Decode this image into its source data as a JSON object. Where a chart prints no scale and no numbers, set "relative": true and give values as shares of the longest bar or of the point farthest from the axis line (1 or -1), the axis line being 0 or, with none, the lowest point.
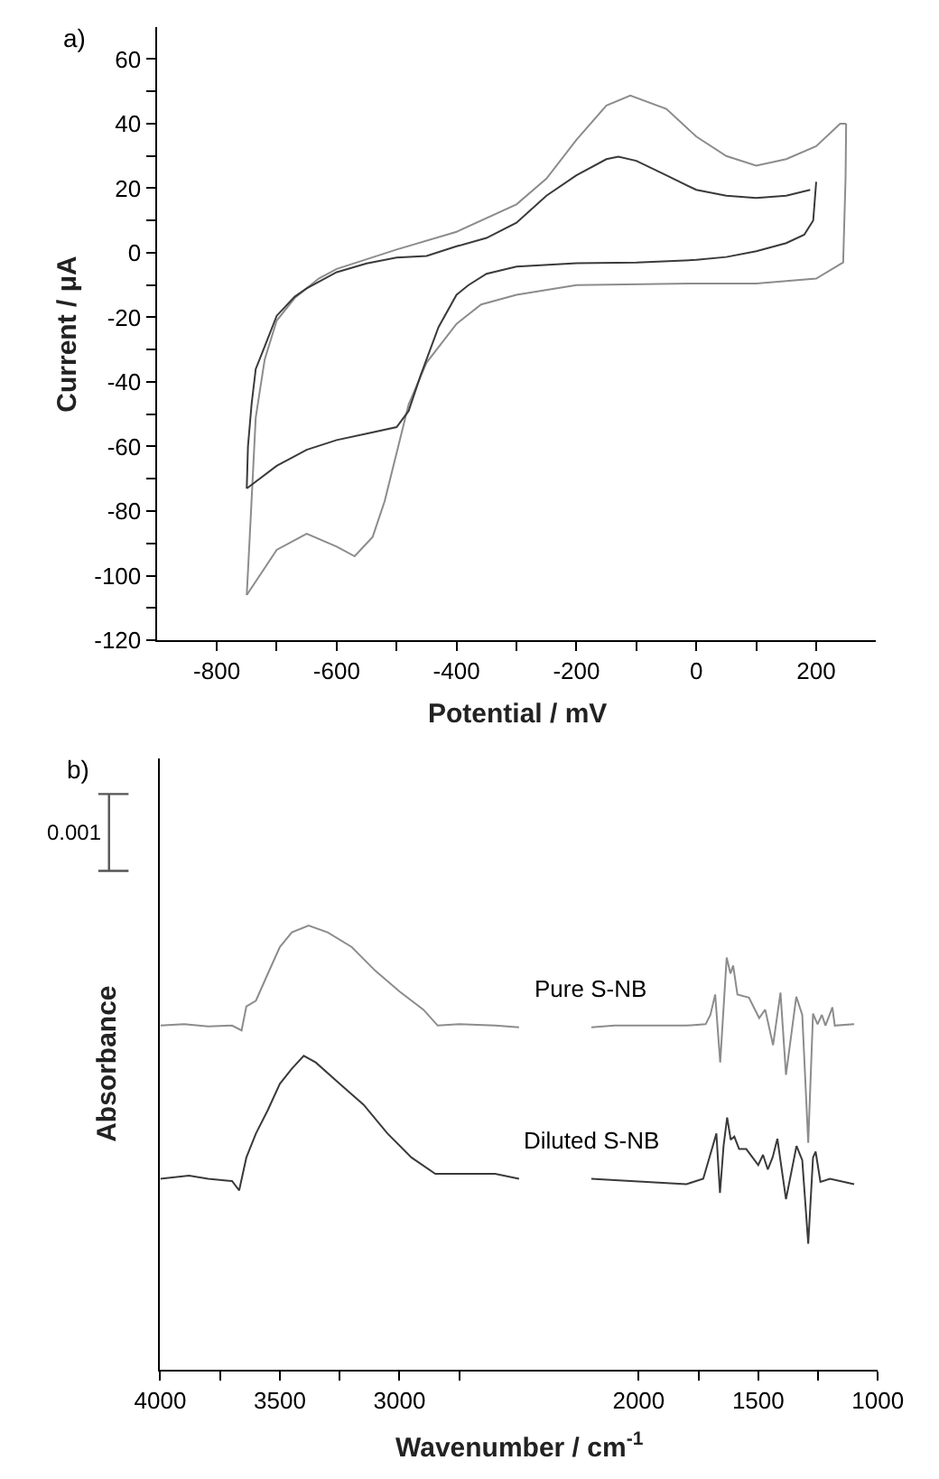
{
  "chart_data": [
    {
      "type": "line",
      "title": "a)",
      "xlabel": "Potential / mV",
      "ylabel": "Current / μA",
      "xlim": [
        -900,
        300
      ],
      "ylim": [
        -120,
        70
      ],
      "xticks": [
        -800,
        {
          "value": -700,
          "label": null
        },
        -600,
        {
          "value": -500,
          "label": null
        },
        -400,
        {
          "value": -300,
          "label": null
        },
        -200,
        {
          "value": -100,
          "label": null
        },
        0,
        {
          "value": 100,
          "label": null
        },
        200
      ],
      "yticks": [
        -120,
        {
          "value": -110,
          "label": null
        },
        -100,
        {
          "value": -90,
          "label": null
        },
        -80,
        {
          "value": -70,
          "label": null
        },
        -60,
        {
          "value": -50,
          "label": null
        },
        -40,
        {
          "value": -30,
          "label": null
        },
        -20,
        {
          "value": -10,
          "label": null
        },
        0,
        {
          "value": 10,
          "label": null
        },
        20,
        {
          "value": 30,
          "label": null
        },
        40,
        {
          "value": 50,
          "label": null
        },
        60
      ],
      "series": [
        {
          "color": "#8c8c8c",
          "x": [
            250,
            249,
            245,
            200,
            100,
            0,
            -200,
            -300,
            -359,
            -400,
            -450,
            -480,
            -500,
            -520,
            -540,
            -570,
            -600,
            -650,
            -700,
            -750
          ],
          "values": [
            40,
            23,
            -3,
            -8,
            -9.5,
            -9.5,
            -10,
            -13,
            -16,
            -22,
            -34,
            -47,
            -62,
            -77,
            -88,
            -94,
            -91,
            -87,
            -92,
            -106
          ]
        },
        {
          "color": "#8c8c8c",
          "x": [
            -750,
            -745,
            -735,
            -720,
            -700,
            -670,
            -630,
            -600,
            -550,
            -500,
            -400,
            -300,
            -250,
            -200,
            -150,
            -110,
            -50,
            0,
            50,
            100,
            150,
            200,
            240,
            250
          ],
          "values": [
            -106,
            -88,
            -51,
            -33,
            -21,
            -14,
            -8,
            -5,
            -2,
            1,
            6.5,
            15,
            23,
            35,
            45.6,
            48.7,
            44.6,
            36,
            30,
            27,
            29,
            33,
            40,
            40
          ]
        },
        {
          "color": "#3a3a3a",
          "x": [
            200,
            195,
            180,
            150,
            100,
            50,
            0,
            -100,
            -200,
            -300,
            -350,
            -380,
            -400,
            -430,
            -460,
            -480,
            -500,
            -550,
            -600,
            -650,
            -700,
            -750
          ],
          "values": [
            22,
            10,
            5.6,
            3,
            0.5,
            -1.3,
            -2.2,
            -3,
            -3.2,
            -4.3,
            -6.5,
            -10,
            -13,
            -23,
            -38,
            -49,
            -54,
            -56,
            -58,
            -61,
            -66,
            -73
          ]
        },
        {
          "color": "#3a3a3a",
          "x": [
            -750,
            -748,
            -742,
            -735,
            -720,
            -700,
            -670,
            -650,
            -600,
            -550,
            -500,
            -450,
            -400,
            -350,
            -300,
            -250,
            -200,
            -150,
            -130,
            -100,
            -50,
            0,
            50,
            100,
            150,
            190
          ],
          "values": [
            -73,
            -60,
            -47,
            -36,
            -29,
            -19.5,
            -13.6,
            -11,
            -6,
            -3.3,
            -1.5,
            -1,
            2,
            4.6,
            9.3,
            17.7,
            24,
            29,
            29.8,
            28.5,
            24,
            19.5,
            17.7,
            17,
            17.7,
            19.5
          ]
        }
      ]
    },
    {
      "type": "line",
      "title": "b)",
      "xlabel": "Wavenumber / cm$^{-1}$",
      "ylabel": "Absorbance",
      "relative": true,
      "xlim": [
        4000,
        1000
      ],
      "xticks": [
        4000,
        {
          "value": 3750,
          "label": null
        },
        3500,
        {
          "value": 3250,
          "label": null
        },
        3000,
        {
          "value": 2750,
          "label": null
        },
        2000,
        {
          "value": 1750,
          "label": null
        },
        1500,
        {
          "value": 1250,
          "label": null
        },
        1000
      ],
      "annotations": [
        "0.001"
      ],
      "series": [
        {
          "name": "Pure S-NB",
          "color": "#8c8c8c",
          "x": [
            4000,
            3900,
            3800,
            3700,
            3660,
            3640,
            3600,
            3550,
            3500,
            3450,
            3380,
            3300,
            3200,
            3100,
            3000,
            2900,
            2840,
            2750,
            2600,
            2500,
            2350,
            2198,
            2100,
            1800,
            1720,
            1700,
            1680,
            1659,
            1632,
            1616,
            1605,
            1587,
            1539,
            1496,
            1471,
            1438,
            1407,
            1384,
            1341,
            1316,
            1291,
            1271,
            1252,
            1234,
            1219,
            1190,
            1180,
            1099
          ],
          "values": [
            0.775,
            0.778,
            0.773,
            0.775,
            0.764,
            0.818,
            0.831,
            0.892,
            0.952,
            0.985,
            1,
            0.985,
            0.952,
            0.898,
            0.852,
            0.811,
            0.775,
            0.778,
            0.775,
            0.771,
            null,
            0.771,
            0.775,
            0.775,
            0.778,
            0.799,
            0.845,
            0.692,
            0.928,
            0.892,
            0.91,
            0.845,
            0.838,
            0.792,
            0.811,
            0.731,
            0.849,
            0.664,
            0.84,
            0.799,
            0.511,
            0.802,
            0.778,
            0.799,
            0.775,
            0.816,
            0.775,
            0.778
          ]
        },
        {
          "name": "Diluted S-NB",
          "color": "#3a3a3a",
          "x": [
            4000,
            3880,
            3800,
            3700,
            3670,
            3640,
            3600,
            3550,
            3500,
            3450,
            3400,
            3350,
            3250,
            3150,
            3050,
            2950,
            2850,
            2750,
            2600,
            2500,
            2350,
            2198,
            2100,
            1800,
            1730,
            1690,
            1675,
            1660,
            1645,
            1630,
            1615,
            1600,
            1580,
            1550,
            1500,
            1480,
            1460,
            1440,
            1420,
            1384,
            1340,
            1316,
            1291,
            1271,
            1260,
            1240,
            1200,
            1099
          ],
          "values": [
            0.43,
            0.437,
            0.43,
            0.425,
            0.404,
            0.478,
            0.532,
            0.585,
            0.644,
            0.678,
            0.707,
            0.692,
            0.644,
            0.597,
            0.532,
            0.478,
            0.441,
            0.441,
            0.441,
            0.43,
            null,
            0.43,
            0.427,
            0.418,
            0.43,
            0.504,
            0.532,
            0.398,
            0.504,
            0.568,
            0.518,
            0.525,
            0.497,
            0.497,
            0.461,
            0.484,
            0.451,
            0.478,
            0.52,
            0.384,
            0.504,
            0.472,
            0.284,
            0.478,
            0.491,
            0.423,
            0.43,
            0.418
          ]
        }
      ]
    }
  ]
}
